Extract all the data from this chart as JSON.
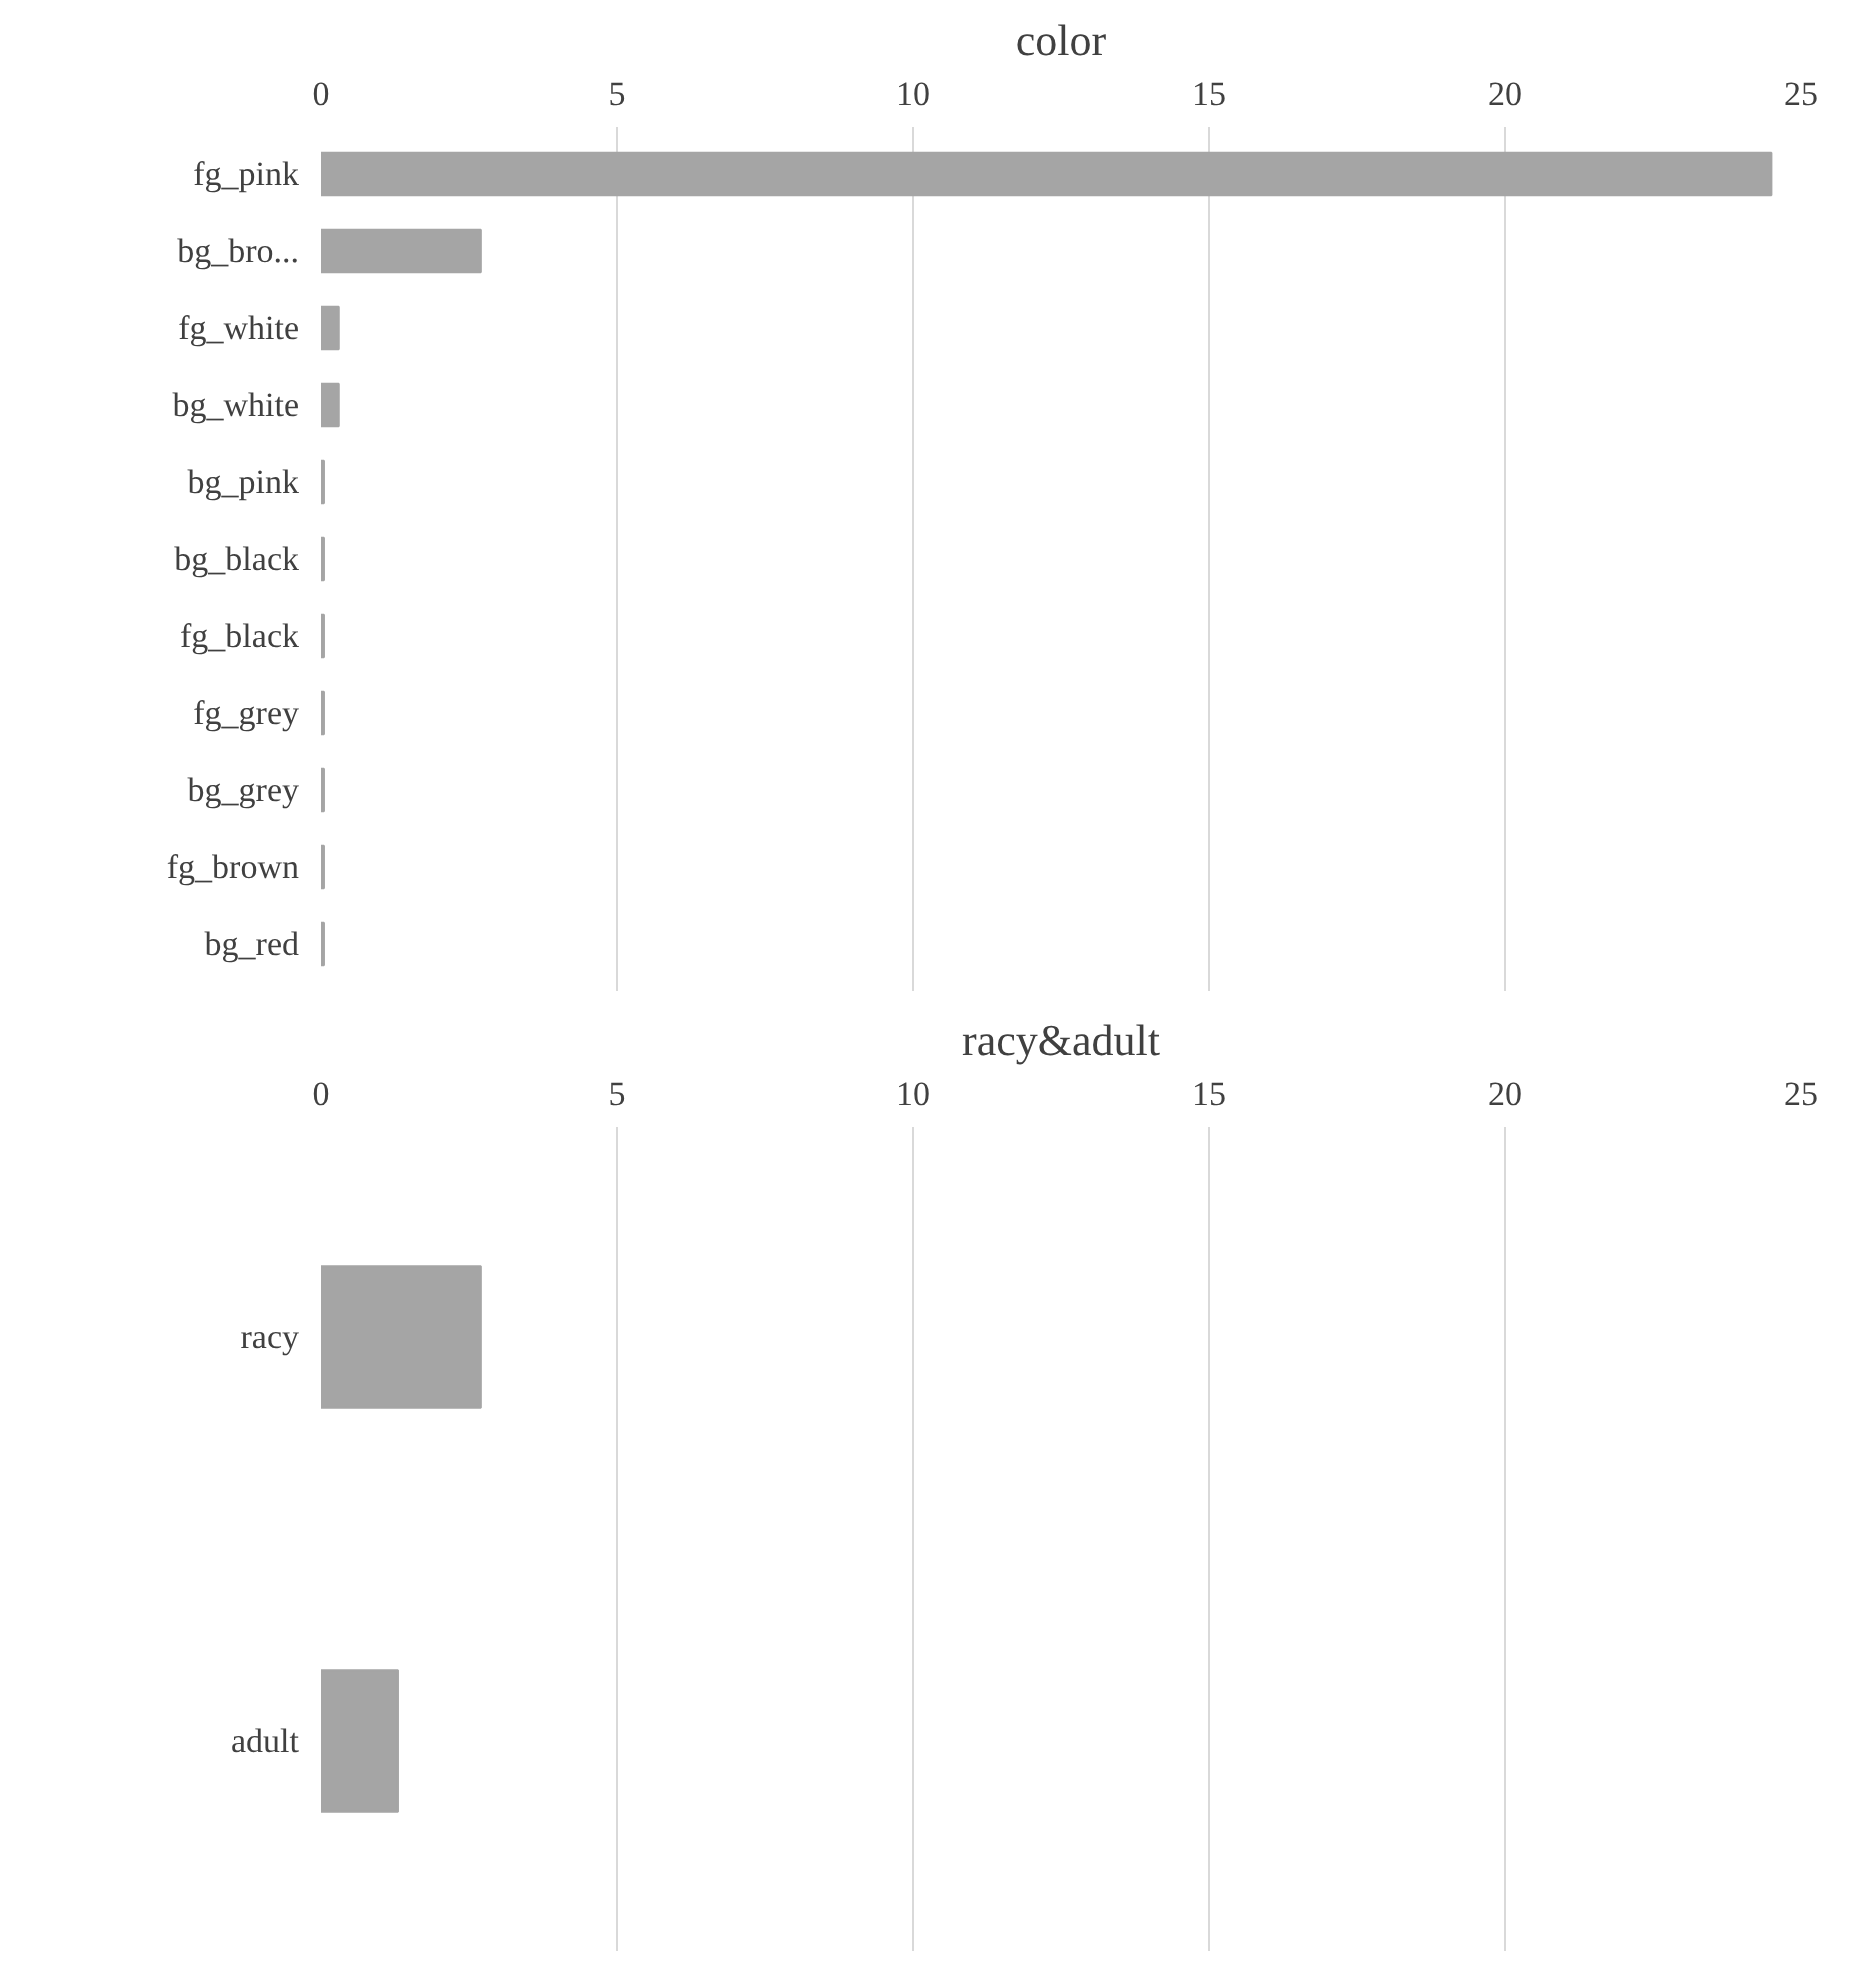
{
  "chart_data": [
    {
      "type": "bar",
      "orientation": "horizontal",
      "title": "color",
      "categories": [
        "fg_pink",
        "bg_bro...",
        "fg_white",
        "bg_white",
        "bg_pink",
        "bg_black",
        "fg_black",
        "fg_grey",
        "bg_grey",
        "fg_brown",
        "bg_red"
      ],
      "values": [
        24.5,
        2.7,
        0.3,
        0.3,
        0.05,
        0.05,
        0.05,
        0.05,
        0.05,
        0.05,
        0.05
      ],
      "color": "#a5a5a5",
      "xlim": [
        0,
        25
      ],
      "xticks": [
        0,
        5,
        10,
        15,
        20,
        25
      ],
      "grid": "x"
    },
    {
      "type": "bar",
      "orientation": "horizontal",
      "title": "racy&adult",
      "categories": [
        "racy",
        "adult"
      ],
      "values": [
        2.7,
        1.3
      ],
      "color": "#a5a5a5",
      "xlim": [
        0,
        25
      ],
      "xticks": [
        0,
        5,
        10,
        15,
        20,
        25
      ],
      "grid": "x"
    }
  ]
}
